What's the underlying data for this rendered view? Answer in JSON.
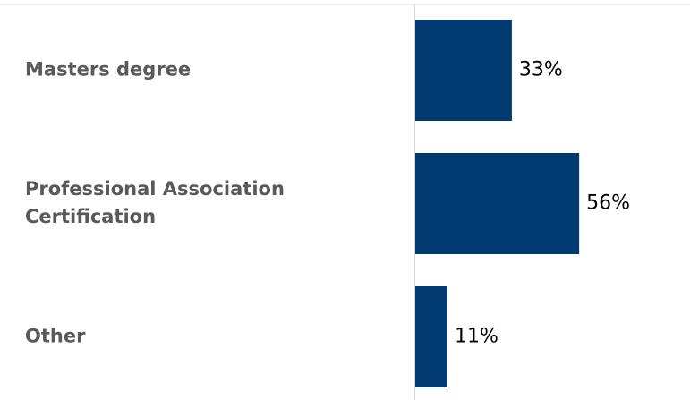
{
  "chart_data": {
    "type": "bar",
    "orientation": "horizontal",
    "categories": [
      [
        "Masters degree"
      ],
      [
        "Professional Association",
        "Certification"
      ],
      [
        "Other"
      ]
    ],
    "values": [
      33,
      56,
      11
    ],
    "value_labels": [
      "33%",
      "56%",
      "11%"
    ],
    "xlim": [
      0,
      100
    ],
    "grid": false,
    "legend": "none",
    "colors": {
      "bar": "#003A70",
      "category_text": "#595959",
      "value_text": "#000000",
      "axis": "#D9D9D9"
    }
  }
}
